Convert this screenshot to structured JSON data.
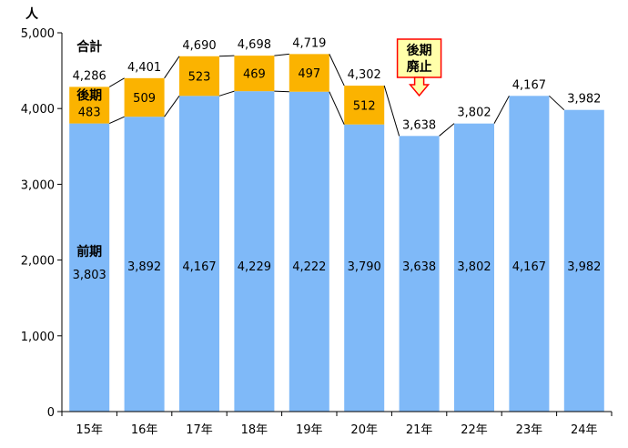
{
  "chart_data": {
    "type": "bar",
    "stacked": true,
    "unit_label": "人",
    "ylim": [
      0,
      5000
    ],
    "y_ticks": [
      "0",
      "1,000",
      "2,000",
      "3,000",
      "4,000",
      "5,000"
    ],
    "y_tick_values": [
      0,
      1000,
      2000,
      3000,
      4000,
      5000
    ],
    "categories": [
      "15年",
      "16年",
      "17年",
      "18年",
      "19年",
      "20年",
      "21年",
      "22年",
      "23年",
      "24年"
    ],
    "series": [
      {
        "name": "前期",
        "color": "#7fb9f8",
        "values": [
          3803,
          3892,
          4167,
          4229,
          4222,
          3790,
          3638,
          3802,
          4167,
          3982
        ],
        "labels": [
          "3,803",
          "3,892",
          "4,167",
          "4,229",
          "4,222",
          "3,790",
          "3,638",
          "3,802",
          "4,167",
          "3,982"
        ]
      },
      {
        "name": "後期",
        "color": "#fbb300",
        "values": [
          483,
          509,
          523,
          469,
          497,
          512,
          0,
          0,
          0,
          0
        ],
        "labels": [
          "483",
          "509",
          "523",
          "469",
          "497",
          "512",
          "",
          "",
          "",
          ""
        ]
      }
    ],
    "totals": [
      4286,
      4401,
      4690,
      4698,
      4719,
      4302,
      3638,
      3802,
      4167,
      3982
    ],
    "total_labels": [
      "4,286",
      "4,401",
      "4,690",
      "4,698",
      "4,719",
      "4,302",
      "3,638",
      "3,802",
      "4,167",
      "3,982"
    ],
    "total_name": "合計",
    "annotation": {
      "text_line1": "後期",
      "text_line2": "廃止",
      "box_color": "#ffffaa",
      "border_color": "#ff0000",
      "arrow_color": "#ff0000"
    },
    "grid": false
  }
}
